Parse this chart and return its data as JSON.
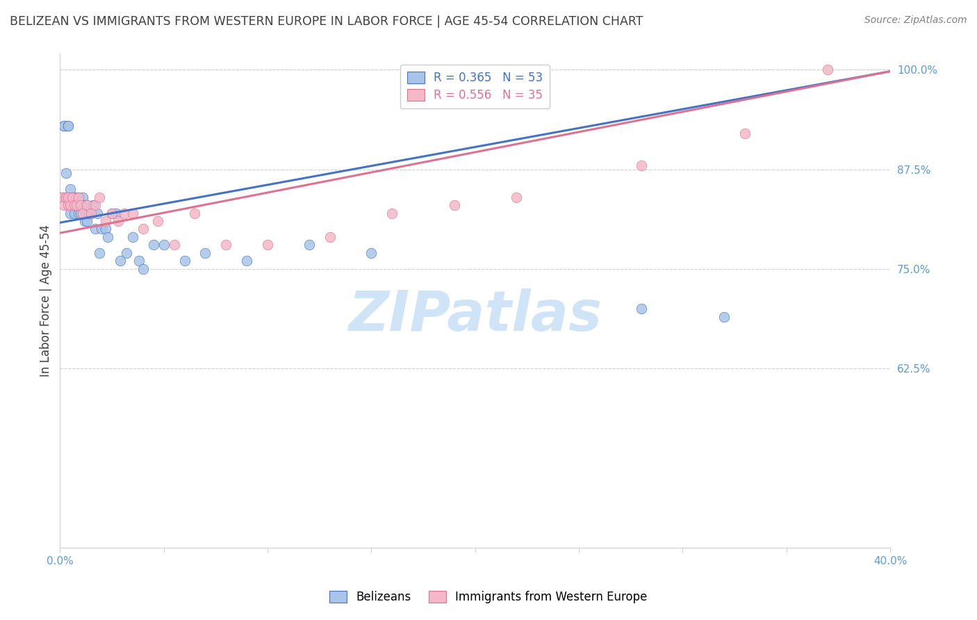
{
  "title": "BELIZEAN VS IMMIGRANTS FROM WESTERN EUROPE IN LABOR FORCE | AGE 45-54 CORRELATION CHART",
  "source": "Source: ZipAtlas.com",
  "ylabel": "In Labor Force | Age 45-54",
  "blue_label": "Belizeans",
  "pink_label": "Immigrants from Western Europe",
  "blue_R": 0.365,
  "blue_N": 53,
  "pink_R": 0.556,
  "pink_N": 35,
  "xlim": [
    0.0,
    0.4
  ],
  "ylim": [
    0.4,
    1.02
  ],
  "yticks": [
    1.0,
    0.875,
    0.75,
    0.625
  ],
  "xticks": [
    0.0,
    0.05,
    0.1,
    0.15,
    0.2,
    0.25,
    0.3,
    0.35,
    0.4
  ],
  "blue_color": "#a8c4e8",
  "pink_color": "#f4b8c8",
  "blue_line_color": "#4472c4",
  "pink_line_color": "#e07090",
  "axis_tick_color": "#5b9bd5",
  "watermark_text": "ZIPatlas",
  "watermark_color": "#d0e4f7",
  "title_color": "#404040",
  "source_color": "#808080",
  "grid_color": "#d0d0d0",
  "blue_x": [
    0.001,
    0.002,
    0.002,
    0.003,
    0.003,
    0.004,
    0.004,
    0.004,
    0.005,
    0.005,
    0.005,
    0.006,
    0.006,
    0.006,
    0.007,
    0.007,
    0.007,
    0.008,
    0.008,
    0.009,
    0.009,
    0.01,
    0.01,
    0.011,
    0.012,
    0.012,
    0.013,
    0.013,
    0.014,
    0.015,
    0.016,
    0.017,
    0.018,
    0.019,
    0.02,
    0.022,
    0.023,
    0.025,
    0.027,
    0.029,
    0.032,
    0.035,
    0.038,
    0.04,
    0.045,
    0.05,
    0.06,
    0.07,
    0.09,
    0.12,
    0.15,
    0.28,
    0.32
  ],
  "blue_y": [
    0.84,
    0.93,
    0.93,
    0.87,
    0.84,
    0.93,
    0.93,
    0.84,
    0.85,
    0.84,
    0.82,
    0.84,
    0.83,
    0.84,
    0.83,
    0.82,
    0.84,
    0.84,
    0.83,
    0.82,
    0.84,
    0.82,
    0.83,
    0.84,
    0.81,
    0.83,
    0.81,
    0.83,
    0.82,
    0.82,
    0.83,
    0.8,
    0.82,
    0.77,
    0.8,
    0.8,
    0.79,
    0.82,
    0.82,
    0.76,
    0.77,
    0.79,
    0.76,
    0.75,
    0.78,
    0.78,
    0.76,
    0.77,
    0.76,
    0.78,
    0.77,
    0.7,
    0.69
  ],
  "pink_x": [
    0.001,
    0.002,
    0.003,
    0.003,
    0.004,
    0.004,
    0.005,
    0.006,
    0.007,
    0.008,
    0.009,
    0.01,
    0.011,
    0.013,
    0.015,
    0.017,
    0.019,
    0.022,
    0.025,
    0.028,
    0.031,
    0.035,
    0.04,
    0.047,
    0.055,
    0.065,
    0.08,
    0.1,
    0.13,
    0.16,
    0.19,
    0.22,
    0.28,
    0.33,
    0.37
  ],
  "pink_y": [
    0.84,
    0.83,
    0.84,
    0.84,
    0.83,
    0.84,
    0.83,
    0.84,
    0.83,
    0.83,
    0.84,
    0.83,
    0.82,
    0.83,
    0.82,
    0.83,
    0.84,
    0.81,
    0.82,
    0.81,
    0.82,
    0.82,
    0.8,
    0.81,
    0.78,
    0.82,
    0.78,
    0.78,
    0.79,
    0.82,
    0.83,
    0.84,
    0.88,
    0.92,
    1.0
  ],
  "blue_trend_x": [
    0.0,
    0.4
  ],
  "blue_trend_y": [
    0.808,
    0.998
  ],
  "pink_trend_x": [
    0.0,
    0.4
  ],
  "pink_trend_y": [
    0.795,
    0.998
  ]
}
